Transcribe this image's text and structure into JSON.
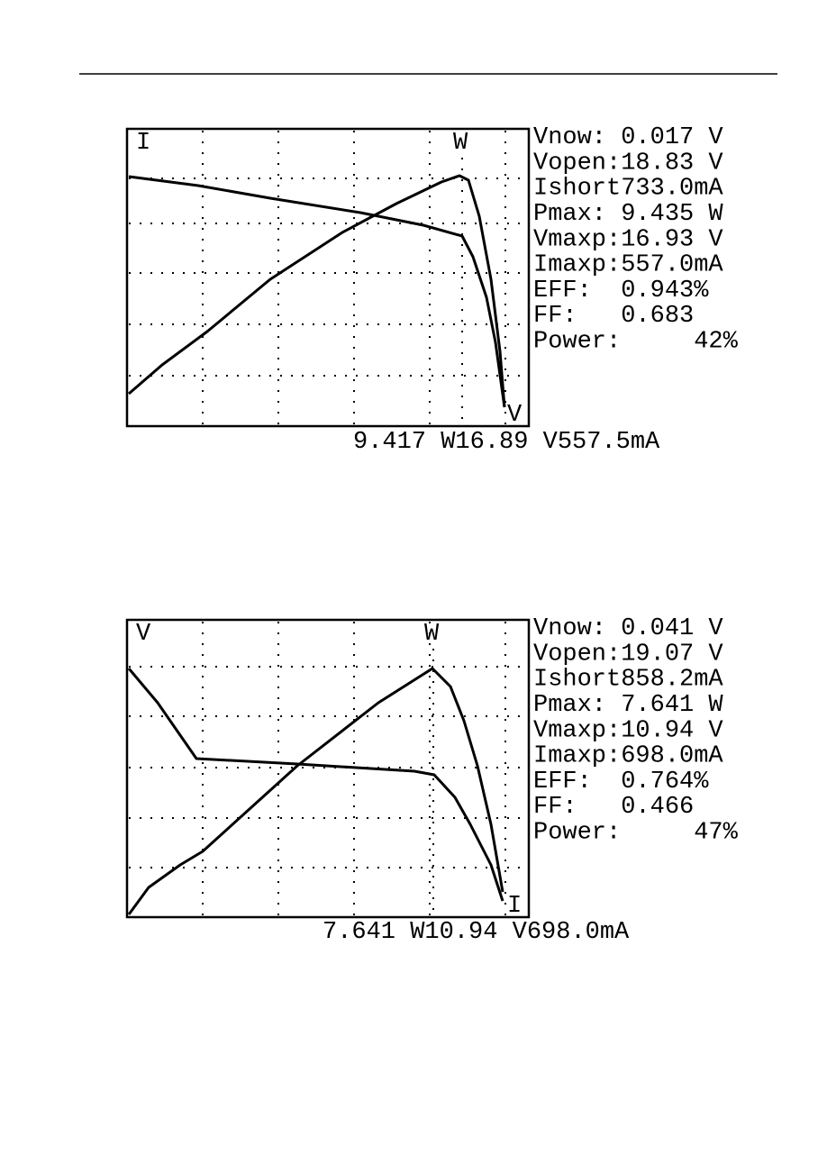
{
  "screens": [
    {
      "corner_labels": [
        "I",
        "W",
        "V"
      ],
      "readings": [
        "Vnow: 0.017 V",
        "Vopen:18.83 V",
        "Ishort733.0mA",
        "Pmax: 9.435 W",
        "Vmaxp:16.93 V",
        "Imaxp:557.0mA",
        "EFF:  0.943%",
        "FF:   0.683",
        "Power:     42%"
      ],
      "footer": "9.417 W16.89 V557.5mA"
    },
    {
      "corner_labels": [
        "V",
        "W",
        "I"
      ],
      "readings": [
        "Vnow: 0.041 V",
        "Vopen:19.07 V",
        "Ishort858.2mA",
        "Pmax: 7.641 W",
        "Vmaxp:10.94 V",
        "Imaxp:698.0mA",
        "EFF:  0.764%",
        "FF:   0.466",
        "Power:     47%"
      ],
      "footer": "7.641 W10.94 V698.0mA"
    }
  ]
}
